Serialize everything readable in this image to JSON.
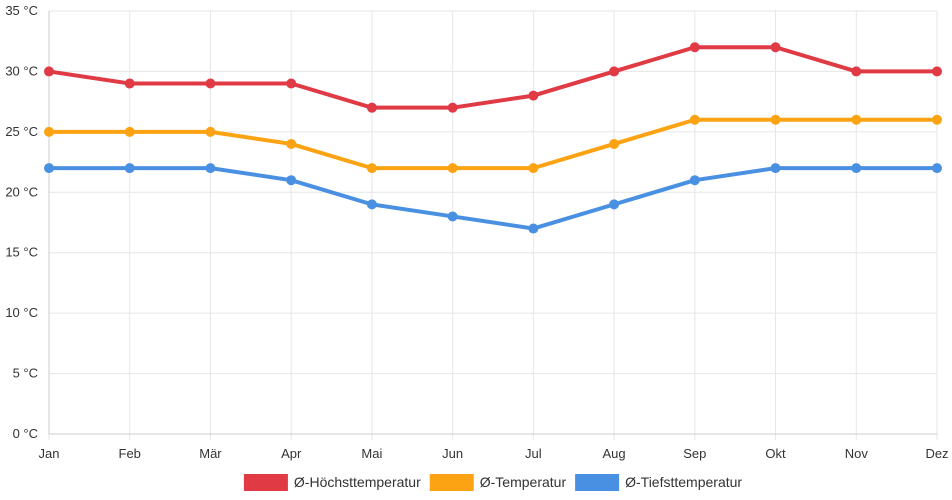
{
  "chart_data": {
    "type": "line",
    "title": "",
    "xlabel": "",
    "ylabel": "",
    "categories": [
      "Jan",
      "Feb",
      "Mär",
      "Apr",
      "Mai",
      "Jun",
      "Jul",
      "Aug",
      "Sep",
      "Okt",
      "Nov",
      "Dez"
    ],
    "ylim": [
      0,
      35
    ],
    "yticks": [
      0,
      5,
      10,
      15,
      20,
      25,
      30,
      35
    ],
    "ytick_labels": [
      "0 °C",
      "5 °C",
      "10 °C",
      "15 °C",
      "20 °C",
      "25 °C",
      "30 °C",
      "35 °C"
    ],
    "grid": true,
    "legend_position": "bottom",
    "series": [
      {
        "name": "Ø-Höchsttemperatur",
        "color": "#e03a45",
        "values": [
          30,
          29,
          29,
          29,
          27,
          27,
          28,
          30,
          32,
          32,
          30,
          30
        ]
      },
      {
        "name": "Ø-Temperatur",
        "color": "#fba313",
        "values": [
          25,
          25,
          25,
          24,
          22,
          22,
          22,
          24,
          26,
          26,
          26,
          26
        ]
      },
      {
        "name": "Ø-Tiefsttemperatur",
        "color": "#4a90e2",
        "values": [
          22,
          22,
          22,
          21,
          19,
          18,
          17,
          19,
          21,
          22,
          22,
          22
        ]
      }
    ]
  }
}
